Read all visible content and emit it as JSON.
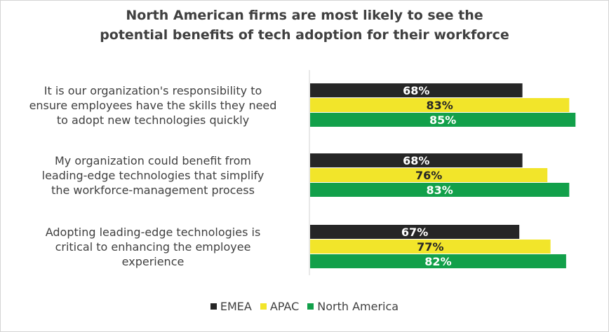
{
  "chart_data": {
    "type": "bar",
    "orientation": "horizontal",
    "title": [
      "North American firms are most likely to see the",
      "potential benefits of tech adoption for their workforce"
    ],
    "categories": [
      [
        "It is our organization's responsibility to",
        "ensure employees have the skills they need",
        "to adopt new technologies quickly"
      ],
      [
        "My organization could benefit from",
        "leading-edge technologies that simplify",
        "the workforce-management process"
      ],
      [
        "Adopting leading-edge technologies is",
        "critical to enhancing the employee",
        "experience"
      ]
    ],
    "series": [
      {
        "name": "EMEA",
        "color": "#262626",
        "label_color": "#ffffff",
        "values": [
          68,
          68,
          67
        ],
        "labels": [
          "68%",
          "68%",
          "67%"
        ]
      },
      {
        "name": "APAC",
        "color": "#f2e52a",
        "label_color": "#262626",
        "values": [
          83,
          76,
          77
        ],
        "labels": [
          "83%",
          "76%",
          "77%"
        ]
      },
      {
        "name": "North America",
        "color": "#12a04a",
        "label_color": "#ffffff",
        "values": [
          85,
          83,
          82
        ],
        "labels": [
          "85%",
          "83%",
          "82%"
        ]
      }
    ],
    "xlim": [
      0,
      100
    ],
    "grid": false,
    "legend_position": "bottom"
  }
}
